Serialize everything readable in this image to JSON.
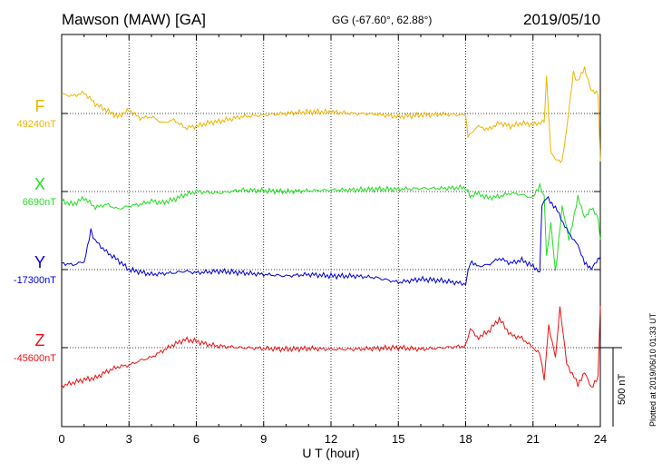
{
  "header": {
    "title": "Mawson (MAW)  [GA]",
    "coords": "GG (-67.60°,  62.88°)",
    "date": "2019/05/10"
  },
  "side_note": "Plotted at 2019/06/10 01:33 UT",
  "chart_data": {
    "type": "line",
    "xlabel": "U T (hour)",
    "xlim": [
      0,
      24
    ],
    "x_ticks": [
      0,
      3,
      6,
      9,
      12,
      15,
      18,
      21,
      24
    ],
    "grid": true,
    "scale_bar": {
      "value": 500,
      "label": "500 nT"
    },
    "series": [
      {
        "name": "F",
        "baseline_label": "49240nT",
        "baseline": 49240,
        "color": "#f0b400",
        "points": [
          [
            0,
            120
          ],
          [
            0.5,
            110
          ],
          [
            1,
            130
          ],
          [
            1.5,
            60
          ],
          [
            2,
            20
          ],
          [
            2.5,
            -20
          ],
          [
            3,
            20
          ],
          [
            3.5,
            -30
          ],
          [
            4,
            -20
          ],
          [
            4.5,
            -60
          ],
          [
            5,
            -40
          ],
          [
            5.5,
            -90
          ],
          [
            6,
            -80
          ],
          [
            6.5,
            -60
          ],
          [
            7,
            -50
          ],
          [
            8,
            -20
          ],
          [
            9,
            -10
          ],
          [
            10,
            0
          ],
          [
            11,
            10
          ],
          [
            12,
            10
          ],
          [
            13,
            0
          ],
          [
            14,
            -5
          ],
          [
            15,
            -20
          ],
          [
            16,
            -10
          ],
          [
            17,
            -5
          ],
          [
            18,
            -10
          ],
          [
            18.1,
            -150
          ],
          [
            18.5,
            -80
          ],
          [
            19,
            -100
          ],
          [
            19.5,
            -60
          ],
          [
            20,
            -80
          ],
          [
            20.5,
            -60
          ],
          [
            21,
            -70
          ],
          [
            21.5,
            -50
          ],
          [
            21.6,
            230
          ],
          [
            21.8,
            -250
          ],
          [
            22,
            -280
          ],
          [
            22.3,
            -300
          ],
          [
            22.5,
            -90
          ],
          [
            22.8,
            250
          ],
          [
            23,
            200
          ],
          [
            23.3,
            280
          ],
          [
            23.6,
            150
          ],
          [
            23.9,
            120
          ],
          [
            24,
            -300
          ]
        ]
      },
      {
        "name": "X",
        "baseline_label": "6690nT",
        "baseline": 6690,
        "color": "#22dd22",
        "points": [
          [
            0,
            -60
          ],
          [
            0.5,
            -80
          ],
          [
            1,
            -40
          ],
          [
            1.5,
            -100
          ],
          [
            2,
            -80
          ],
          [
            2.5,
            -110
          ],
          [
            3,
            -90
          ],
          [
            3.5,
            -80
          ],
          [
            4,
            -60
          ],
          [
            4.5,
            -70
          ],
          [
            5,
            -50
          ],
          [
            5.5,
            -20
          ],
          [
            6,
            0
          ],
          [
            7,
            -10
          ],
          [
            8,
            10
          ],
          [
            9,
            5
          ],
          [
            10,
            0
          ],
          [
            11,
            5
          ],
          [
            12,
            10
          ],
          [
            13,
            10
          ],
          [
            14,
            15
          ],
          [
            15,
            15
          ],
          [
            16,
            20
          ],
          [
            17,
            20
          ],
          [
            18,
            25
          ],
          [
            18.2,
            -30
          ],
          [
            18.5,
            -10
          ],
          [
            19,
            -40
          ],
          [
            19.5,
            -30
          ],
          [
            20,
            -10
          ],
          [
            20.5,
            -20
          ],
          [
            21,
            -40
          ],
          [
            21.3,
            40
          ],
          [
            21.5,
            -30
          ],
          [
            21.6,
            -400
          ],
          [
            21.8,
            -200
          ],
          [
            22,
            -500
          ],
          [
            22.3,
            -100
          ],
          [
            22.6,
            -300
          ],
          [
            23,
            -40
          ],
          [
            23.3,
            -160
          ],
          [
            23.6,
            -100
          ],
          [
            23.9,
            -170
          ],
          [
            24,
            -300
          ]
        ]
      },
      {
        "name": "Y",
        "baseline_label": "-17300nT",
        "baseline": -17300,
        "color": "#0000dd",
        "points": [
          [
            0,
            40
          ],
          [
            0.5,
            30
          ],
          [
            1,
            50
          ],
          [
            1.3,
            240
          ],
          [
            1.5,
            180
          ],
          [
            2,
            110
          ],
          [
            2.5,
            60
          ],
          [
            3,
            0
          ],
          [
            4,
            -30
          ],
          [
            5,
            -20
          ],
          [
            5.5,
            -10
          ],
          [
            6,
            -20
          ],
          [
            7,
            -10
          ],
          [
            8,
            -20
          ],
          [
            9,
            -30
          ],
          [
            10,
            -40
          ],
          [
            11,
            -30
          ],
          [
            12,
            -40
          ],
          [
            13,
            -40
          ],
          [
            14,
            -50
          ],
          [
            15,
            -80
          ],
          [
            16,
            -60
          ],
          [
            17,
            -70
          ],
          [
            18,
            -90
          ],
          [
            18.2,
            50
          ],
          [
            18.5,
            20
          ],
          [
            19,
            30
          ],
          [
            19.5,
            70
          ],
          [
            20,
            40
          ],
          [
            20.5,
            60
          ],
          [
            21,
            20
          ],
          [
            21.3,
            -10
          ],
          [
            21.4,
            400
          ],
          [
            21.6,
            450
          ],
          [
            22,
            390
          ],
          [
            22.5,
            250
          ],
          [
            23,
            150
          ],
          [
            23.3,
            50
          ],
          [
            23.6,
            0
          ],
          [
            23.9,
            60
          ],
          [
            24,
            80
          ]
        ]
      },
      {
        "name": "Z",
        "baseline_label": "-45600nT",
        "baseline": -45600,
        "color": "#ee1111",
        "points": [
          [
            0,
            -240
          ],
          [
            0.5,
            -220
          ],
          [
            1,
            -200
          ],
          [
            1.5,
            -190
          ],
          [
            2,
            -150
          ],
          [
            2.5,
            -120
          ],
          [
            3,
            -110
          ],
          [
            3.5,
            -80
          ],
          [
            4,
            -60
          ],
          [
            4.5,
            -20
          ],
          [
            5,
            20
          ],
          [
            5.5,
            50
          ],
          [
            6,
            40
          ],
          [
            6.5,
            20
          ],
          [
            7,
            10
          ],
          [
            8,
            0
          ],
          [
            9,
            -5
          ],
          [
            10,
            -10
          ],
          [
            11,
            -5
          ],
          [
            12,
            -10
          ],
          [
            13,
            -10
          ],
          [
            14,
            -5
          ],
          [
            15,
            0
          ],
          [
            16,
            -10
          ],
          [
            17,
            0
          ],
          [
            18,
            10
          ],
          [
            18.2,
            120
          ],
          [
            18.5,
            60
          ],
          [
            19,
            100
          ],
          [
            19.5,
            180
          ],
          [
            20,
            80
          ],
          [
            20.5,
            60
          ],
          [
            21,
            0
          ],
          [
            21.3,
            -30
          ],
          [
            21.5,
            -200
          ],
          [
            21.7,
            140
          ],
          [
            22,
            -60
          ],
          [
            22.2,
            250
          ],
          [
            22.5,
            -100
          ],
          [
            23,
            -230
          ],
          [
            23.3,
            -150
          ],
          [
            23.6,
            -260
          ],
          [
            23.9,
            -180
          ],
          [
            24,
            260
          ]
        ]
      }
    ]
  }
}
